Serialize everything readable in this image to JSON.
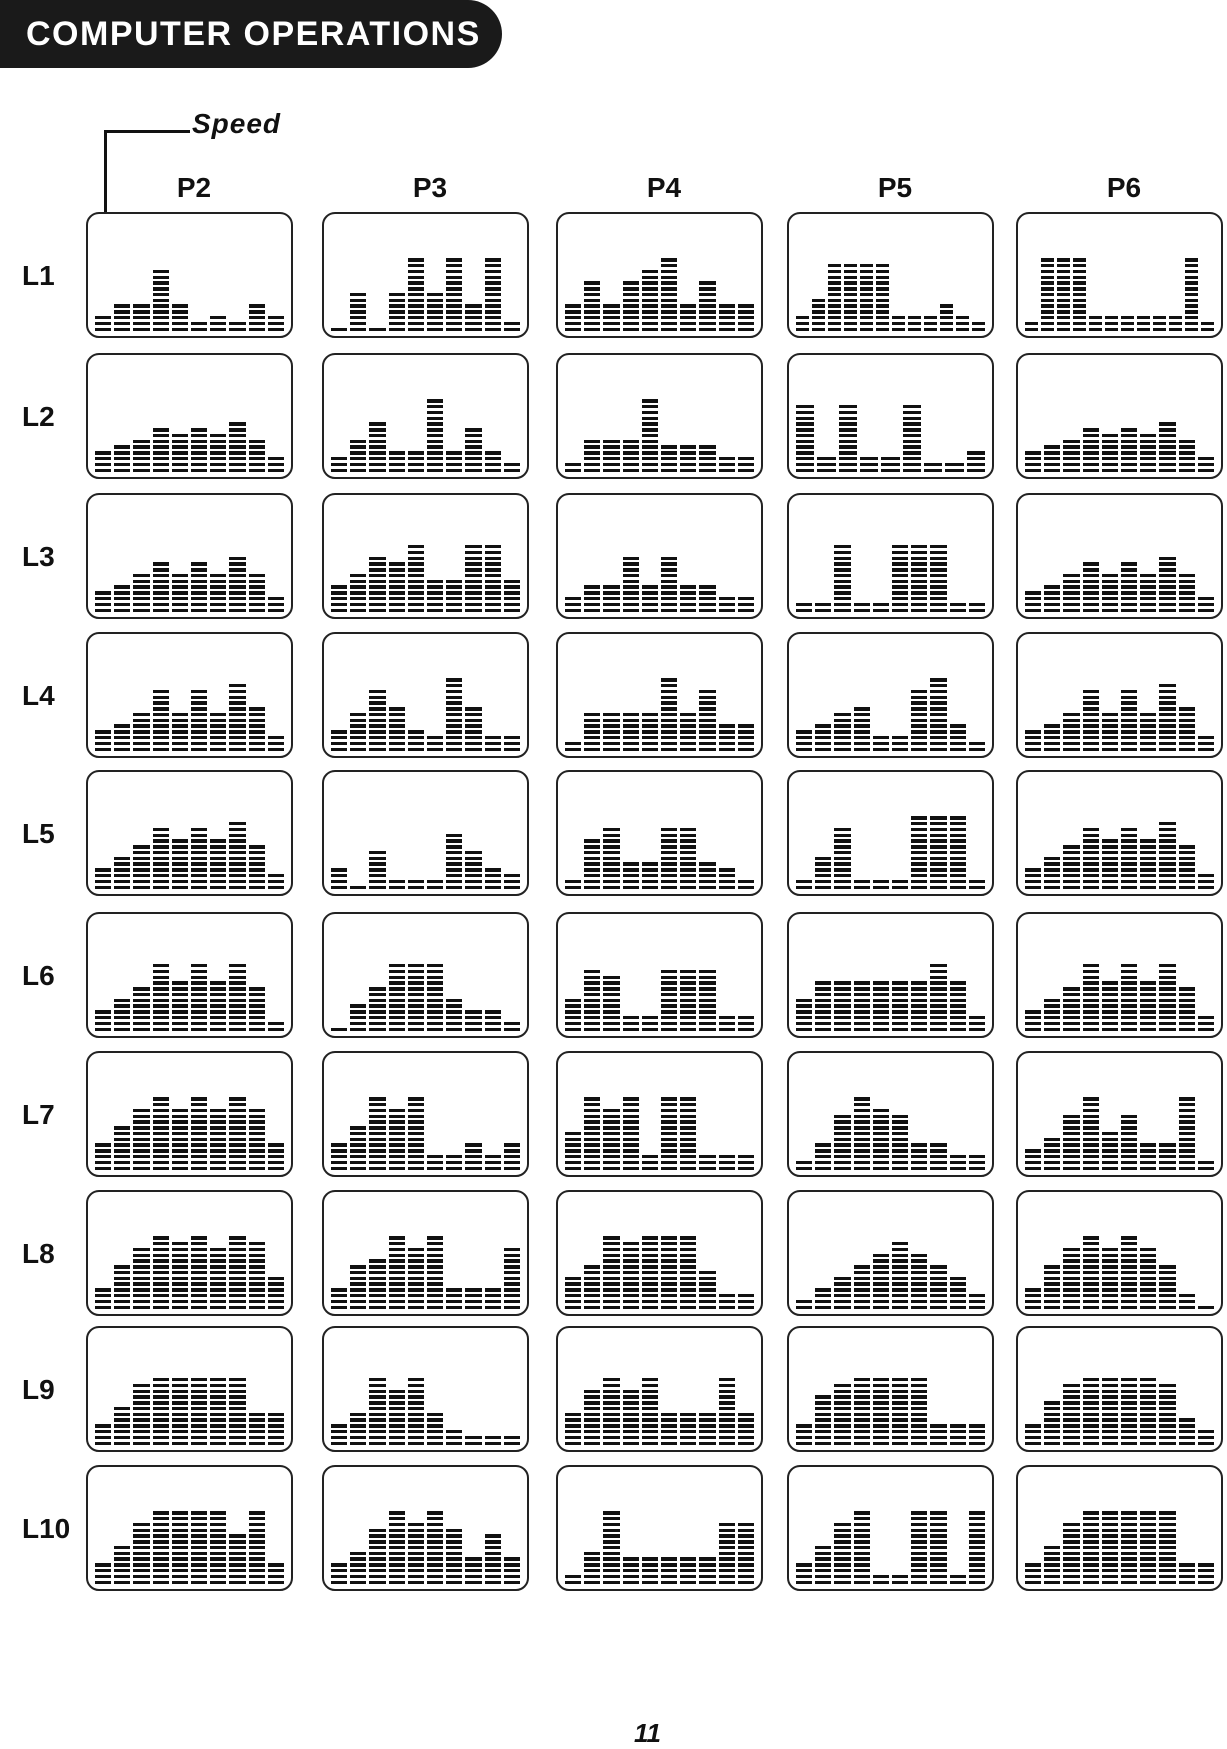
{
  "header": {
    "title": "COMPUTER OPERATIONS"
  },
  "speed_label": "Speed",
  "programs": [
    "P2",
    "P3",
    "P4",
    "P5",
    "P6"
  ],
  "levels": [
    "L1",
    "L2",
    "L3",
    "L4",
    "L5",
    "L6",
    "L7",
    "L8",
    "L9",
    "L10"
  ],
  "profiles": {
    "L1": [
      [
        3,
        5,
        5,
        11,
        5,
        2,
        3,
        2,
        5,
        3
      ],
      [
        1,
        7,
        1,
        7,
        13,
        7,
        13,
        5,
        13,
        2
      ],
      [
        5,
        9,
        5,
        9,
        11,
        13,
        5,
        9,
        5,
        5
      ],
      [
        3,
        6,
        12,
        12,
        12,
        12,
        3,
        3,
        3,
        5,
        3,
        2
      ],
      [
        2,
        13,
        13,
        13,
        3,
        3,
        3,
        3,
        3,
        3,
        13,
        2
      ]
    ],
    "L2": [
      [
        4,
        5,
        6,
        8,
        7,
        8,
        7,
        9,
        6,
        3
      ],
      [
        3,
        6,
        9,
        4,
        4,
        13,
        4,
        8,
        4,
        2
      ],
      [
        2,
        6,
        6,
        6,
        13,
        5,
        5,
        5,
        3,
        3
      ],
      [
        12,
        3,
        12,
        3,
        3,
        12,
        2,
        2,
        4
      ],
      [
        4,
        5,
        6,
        8,
        7,
        8,
        7,
        9,
        6,
        3
      ]
    ],
    "L3": [
      [
        4,
        5,
        7,
        9,
        7,
        9,
        7,
        10,
        7,
        3
      ],
      [
        5,
        7,
        10,
        9,
        12,
        6,
        6,
        12,
        12,
        6
      ],
      [
        3,
        5,
        5,
        10,
        5,
        10,
        5,
        5,
        3,
        3
      ],
      [
        2,
        2,
        12,
        2,
        2,
        12,
        12,
        12,
        2,
        2
      ],
      [
        4,
        5,
        7,
        9,
        7,
        9,
        7,
        10,
        7,
        3
      ]
    ],
    "L4": [
      [
        4,
        5,
        7,
        11,
        7,
        11,
        7,
        12,
        8,
        3
      ],
      [
        4,
        7,
        11,
        8,
        4,
        3,
        13,
        8,
        3,
        3
      ],
      [
        2,
        7,
        7,
        7,
        7,
        13,
        7,
        11,
        5,
        5
      ],
      [
        4,
        5,
        7,
        8,
        3,
        3,
        11,
        13,
        5,
        2
      ],
      [
        4,
        5,
        7,
        11,
        7,
        11,
        7,
        12,
        8,
        3
      ]
    ],
    "L5": [
      [
        4,
        6,
        8,
        11,
        9,
        11,
        9,
        12,
        8,
        3
      ],
      [
        4,
        1,
        7,
        2,
        2,
        2,
        10,
        7,
        4,
        3
      ],
      [
        2,
        9,
        11,
        5,
        5,
        11,
        11,
        5,
        4,
        2
      ],
      [
        2,
        6,
        11,
        2,
        2,
        2,
        13,
        13,
        13,
        2
      ],
      [
        4,
        6,
        8,
        11,
        9,
        11,
        9,
        12,
        8,
        3
      ]
    ],
    "L6": [
      [
        4,
        6,
        8,
        12,
        9,
        12,
        9,
        12,
        8,
        2
      ],
      [
        1,
        5,
        8,
        12,
        12,
        12,
        6,
        4,
        4,
        2
      ],
      [
        6,
        11,
        10,
        3,
        3,
        11,
        11,
        11,
        3,
        3
      ],
      [
        6,
        9,
        9,
        9,
        9,
        9,
        9,
        12,
        9,
        3
      ],
      [
        4,
        6,
        8,
        12,
        9,
        12,
        9,
        12,
        8,
        3
      ]
    ],
    "L7": [
      [
        5,
        8,
        11,
        13,
        11,
        13,
        11,
        13,
        11,
        5
      ],
      [
        5,
        8,
        13,
        11,
        13,
        3,
        3,
        5,
        3,
        5
      ],
      [
        7,
        13,
        11,
        13,
        3,
        13,
        13,
        3,
        3,
        3
      ],
      [
        2,
        5,
        10,
        13,
        11,
        10,
        5,
        5,
        3,
        3
      ],
      [
        4,
        6,
        10,
        13,
        7,
        10,
        5,
        5,
        13,
        2
      ]
    ],
    "L8": [
      [
        4,
        8,
        11,
        13,
        12,
        13,
        11,
        13,
        12,
        6
      ],
      [
        4,
        8,
        9,
        13,
        11,
        13,
        4,
        4,
        4,
        11
      ],
      [
        6,
        8,
        13,
        12,
        13,
        13,
        13,
        7,
        3,
        3
      ],
      [
        2,
        4,
        6,
        8,
        10,
        12,
        10,
        8,
        6,
        3
      ],
      [
        4,
        8,
        11,
        13,
        11,
        13,
        11,
        8,
        3,
        1
      ]
    ],
    "L9": [
      [
        4,
        7,
        11,
        12,
        12,
        12,
        12,
        12,
        6,
        6
      ],
      [
        4,
        6,
        12,
        10,
        12,
        6,
        3,
        2,
        2,
        2
      ],
      [
        6,
        10,
        12,
        10,
        12,
        6,
        6,
        6,
        12,
        6
      ],
      [
        4,
        9,
        11,
        12,
        12,
        12,
        12,
        4,
        4,
        4
      ],
      [
        4,
        8,
        11,
        12,
        12,
        12,
        12,
        11,
        5,
        3
      ]
    ],
    "L10": [
      [
        4,
        7,
        11,
        13,
        13,
        13,
        13,
        9,
        13,
        4
      ],
      [
        4,
        6,
        10,
        13,
        11,
        13,
        10,
        5,
        9,
        5
      ],
      [
        2,
        6,
        13,
        5,
        5,
        5,
        5,
        5,
        11,
        11
      ],
      [
        4,
        7,
        11,
        13,
        2,
        2,
        13,
        13,
        2,
        13
      ],
      [
        4,
        7,
        11,
        13,
        13,
        13,
        13,
        13,
        4,
        4
      ]
    ]
  },
  "page_number": "11"
}
